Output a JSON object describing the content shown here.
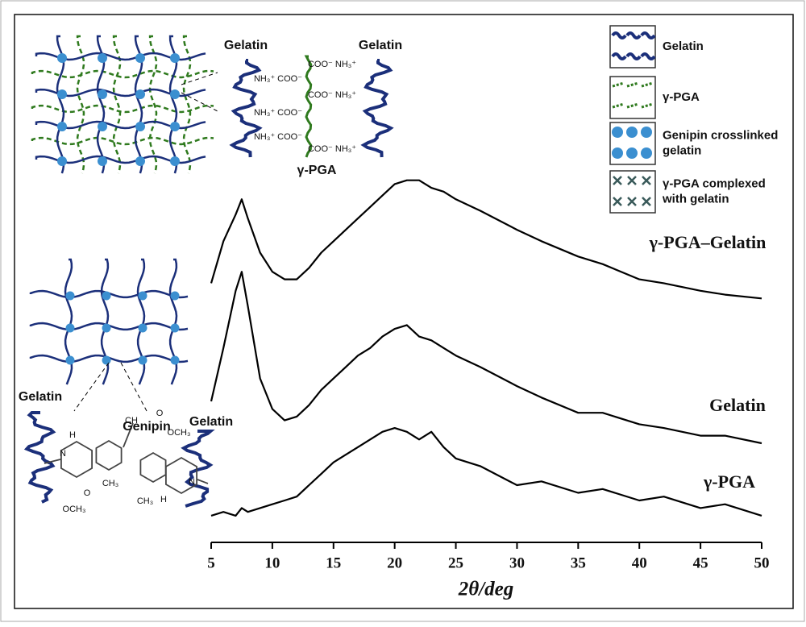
{
  "chart_data": {
    "type": "line",
    "x": [
      5,
      6,
      7,
      7.5,
      8,
      9,
      10,
      11,
      12,
      13,
      14,
      15,
      16,
      17,
      18,
      19,
      20,
      21,
      22,
      23,
      24,
      25,
      27,
      30,
      32,
      35,
      37,
      40,
      42,
      45,
      47,
      50
    ],
    "series": [
      {
        "name": "γ-PGA–Gelatin",
        "color": "#000000",
        "values": [
          68,
          79,
          86,
          90,
          85,
          76,
          71,
          69,
          69,
          72,
          76,
          79,
          82,
          85,
          88,
          91,
          94,
          95,
          95,
          93,
          92,
          90,
          87,
          82,
          79,
          75,
          73,
          69,
          68,
          66,
          65,
          64
        ]
      },
      {
        "name": "Gelatin",
        "color": "#000000",
        "values": [
          37,
          51,
          66,
          71,
          62,
          43,
          35,
          32,
          33,
          36,
          40,
          43,
          46,
          49,
          51,
          54,
          56,
          57,
          54,
          53,
          51,
          49,
          46,
          41,
          38,
          34,
          34,
          31,
          30,
          28,
          28,
          26
        ]
      },
      {
        "name": "γ-PGA",
        "color": "#000000",
        "values": [
          7,
          8,
          7,
          9,
          8,
          9,
          10,
          11,
          12,
          15,
          18,
          21,
          23,
          25,
          27,
          29,
          30,
          29,
          27,
          29,
          25,
          22,
          20,
          15,
          16,
          13,
          14,
          11,
          12,
          9,
          10,
          7
        ]
      }
    ],
    "xlim": [
      5,
      50
    ],
    "xticks": [
      5,
      10,
      15,
      20,
      25,
      30,
      35,
      40,
      45,
      50
    ],
    "ylim": [
      0,
      100
    ],
    "xlabel": "2θ/deg"
  },
  "schematic": {
    "top": [
      "Gelatin",
      "Gelatin",
      "γ-PGA",
      "NH₃⁺ COO⁻",
      "NH₃⁺ COO⁻",
      "NH₃⁺ COO⁻",
      "COO⁻ NH₃⁺",
      "COO⁻ NH₃⁺",
      "COO⁻ NH₃⁺"
    ],
    "bottom": [
      "Gelatin",
      "Genipin",
      "Gelatin",
      "CH",
      "O",
      "OCH₃",
      "CH₃",
      "CH₃",
      "OCH₃",
      "O",
      "N",
      "N",
      "H",
      "H"
    ],
    "legend": [
      [
        "Gelatin"
      ],
      [
        "γ-PGA"
      ],
      [
        "Genipin crosslinked",
        "gelatin"
      ],
      [
        "γ-PGA complexed",
        "with gelatin"
      ]
    ]
  }
}
